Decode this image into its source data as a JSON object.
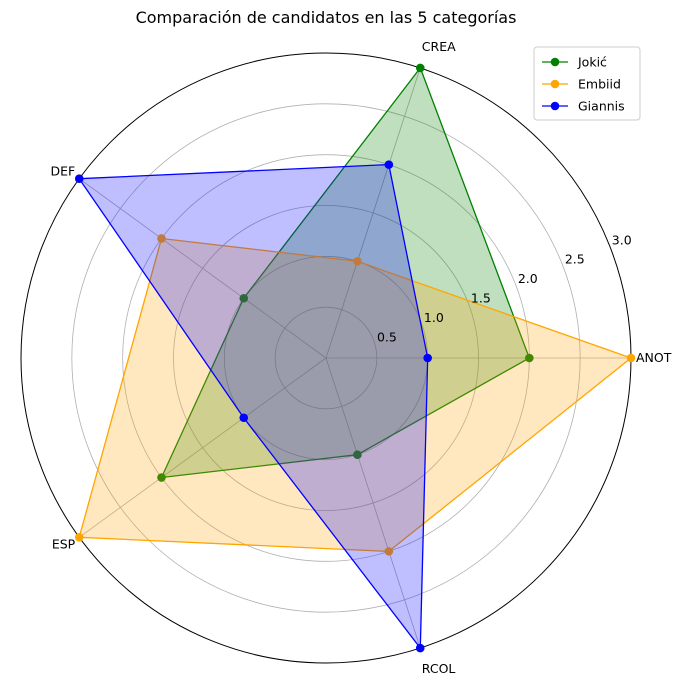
{
  "chart_data": {
    "type": "radar",
    "title": "Comparación de candidatos en las 5 categorías",
    "categories": [
      "ANOT",
      "CREA",
      "DEF",
      "ESP",
      "RCOL"
    ],
    "radial_ticks": [
      "0.5",
      "1.0",
      "1.5",
      "2.0",
      "2.5",
      "3.0"
    ],
    "rlim": [
      0,
      3
    ],
    "grid": true,
    "legend_position": "top-right",
    "series": [
      {
        "name": "Jokić",
        "color": "#008000",
        "values": [
          2.0,
          3.0,
          1.0,
          2.0,
          1.0
        ]
      },
      {
        "name": "Embiid",
        "color": "#FFA500",
        "values": [
          3.0,
          1.0,
          2.0,
          3.0,
          2.0
        ]
      },
      {
        "name": "Giannis",
        "color": "#0000FF",
        "values": [
          1.0,
          2.0,
          3.0,
          1.0,
          3.0
        ]
      }
    ]
  }
}
